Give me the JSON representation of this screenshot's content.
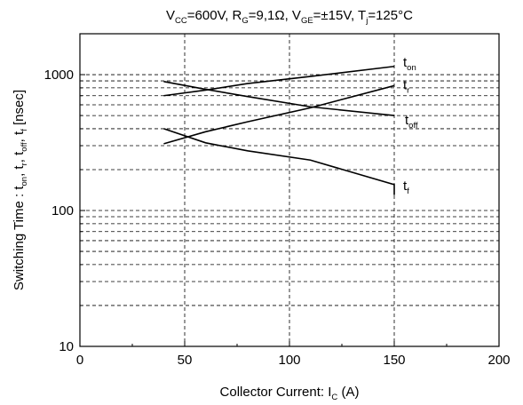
{
  "chart_data": {
    "type": "line",
    "title": {
      "v": "V",
      "v_sub": "CC",
      "v_val": "=600V, R",
      "r_sub": "G",
      "r_val": "=9,1Ω, V",
      "vge_sub": "GE",
      "vge_val": "=±15V, T",
      "t_sub": "j",
      "t_val": "=125°C"
    },
    "xlabel": {
      "main": "Collector Current: I",
      "sub": "C",
      "unit": " (A)"
    },
    "ylabel": {
      "p1": "Switching Time : t",
      "s1": "on",
      "p2": ", t",
      "s2": "r",
      "p3": ", t",
      "s3": "off",
      "p4": ", t",
      "s4": "f",
      "p5": " [nsec]"
    },
    "x_ticks": [
      "0",
      "50",
      "100",
      "150",
      "200"
    ],
    "y_ticks": [
      "10",
      "100",
      "1000"
    ],
    "xlim": [
      0,
      200
    ],
    "ylim": [
      10,
      2000
    ],
    "yscale": "log",
    "grid": "dashed",
    "series": [
      {
        "label": "t",
        "sub": "on",
        "x": [
          40,
          60,
          80,
          110,
          150
        ],
        "y": [
          700,
          770,
          860,
          970,
          1150
        ]
      },
      {
        "label": "t",
        "sub": "r",
        "x": [
          40,
          60,
          80,
          110,
          150
        ],
        "y": [
          310,
          380,
          450,
          570,
          830
        ]
      },
      {
        "label": "t",
        "sub": "off",
        "x": [
          40,
          60,
          80,
          110,
          150
        ],
        "y": [
          890,
          780,
          690,
          580,
          500
        ]
      },
      {
        "label": "t",
        "sub": "f",
        "x": [
          40,
          60,
          80,
          110,
          150,
          150
        ],
        "y": [
          400,
          315,
          275,
          235,
          155,
          130
        ]
      }
    ]
  }
}
